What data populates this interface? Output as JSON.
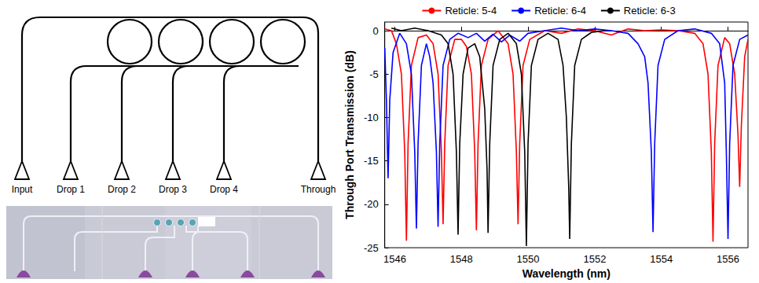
{
  "diagram": {
    "ports": [
      "Input",
      "Drop 1",
      "Drop 2",
      "Drop 3",
      "Drop 4",
      "Through"
    ]
  },
  "chart_data": {
    "type": "line",
    "x_label": "Wavelength (nm)",
    "y_label": "Through Port Transmission (dB)",
    "xlim": [
      1545.7,
      1556.6
    ],
    "xticks": [
      1546,
      1548,
      1550,
      1552,
      1554,
      1556
    ],
    "ylim": [
      -25,
      1
    ],
    "yticks": [
      -25,
      -20,
      -15,
      -10,
      -5,
      0
    ],
    "grid": false,
    "legend": "top",
    "series": [
      {
        "name": "Reticle: 5-4",
        "color": "#ff0000",
        "x": [
          1545.7,
          1545.9,
          1546.05,
          1546.2,
          1546.3,
          1546.35,
          1546.4,
          1546.5,
          1546.7,
          1546.95,
          1547.15,
          1547.3,
          1547.4,
          1547.45,
          1547.5,
          1547.6,
          1547.8,
          1548.0,
          1548.15,
          1548.3,
          1548.4,
          1548.45,
          1548.5,
          1548.6,
          1548.8,
          1549.1,
          1549.4,
          1549.55,
          1549.65,
          1549.7,
          1549.75,
          1549.85,
          1550.05,
          1550.5,
          1551.0,
          1551.5,
          1552.0,
          1552.5,
          1553.0,
          1553.5,
          1554.0,
          1554.5,
          1555.0,
          1555.25,
          1555.4,
          1555.5,
          1555.55,
          1555.6,
          1555.7,
          1555.9,
          1556.05,
          1556.2,
          1556.3,
          1556.35,
          1556.4,
          1556.5,
          1556.6
        ],
        "values": [
          0.2,
          0,
          -1.5,
          -5,
          -14,
          -24.2,
          -13,
          -4,
          -0.8,
          -0.5,
          -1.5,
          -5,
          -14,
          -22.3,
          -13,
          -4,
          -1,
          -1,
          -1.8,
          -5,
          -14,
          -23,
          -13,
          -4,
          -1,
          0,
          -1.5,
          -5,
          -14,
          -22.3,
          -13,
          -4,
          -1,
          0,
          -0.3,
          0.2,
          0,
          -0.5,
          0.2,
          0,
          0.1,
          0,
          -0.3,
          -1.5,
          -5,
          -14,
          -24.3,
          -13,
          -4,
          -0.8,
          -1.5,
          -5,
          -12,
          -18,
          -11,
          -3,
          -1
        ]
      },
      {
        "name": "Reticle: 6-4",
        "color": "#0000ff",
        "x": [
          1545.7,
          1545.75,
          1545.8,
          1545.85,
          1545.95,
          1546.15,
          1546.35,
          1546.5,
          1546.6,
          1546.65,
          1546.7,
          1546.8,
          1546.95,
          1547.05,
          1547.15,
          1547.25,
          1547.3,
          1547.35,
          1547.45,
          1547.65,
          1547.9,
          1548.2,
          1548.45,
          1548.7,
          1548.95,
          1549.2,
          1549.45,
          1549.75,
          1550.0,
          1550.5,
          1551.0,
          1551.5,
          1552.0,
          1552.5,
          1553.0,
          1553.3,
          1553.5,
          1553.6,
          1553.7,
          1553.75,
          1553.8,
          1553.9,
          1554.1,
          1554.5,
          1555.0,
          1555.5,
          1555.75,
          1555.9,
          1555.95,
          1556.0,
          1556.05,
          1556.15,
          1556.35,
          1556.6
        ],
        "values": [
          -2,
          -8,
          -17,
          -8,
          -2.5,
          -0.3,
          -1.5,
          -5,
          -14,
          -22.8,
          -13,
          -4,
          -1.5,
          -3,
          -6,
          -14,
          -22.6,
          -13,
          -4,
          -1,
          -0.3,
          -0.8,
          -0.3,
          -1.2,
          -0.4,
          -1.3,
          -0.5,
          -1.2,
          -0.3,
          0,
          0.3,
          0,
          0.2,
          0,
          -0.3,
          -1.5,
          -3,
          -6,
          -14,
          -23.2,
          -13,
          -4,
          -1,
          0,
          0.2,
          -0.3,
          -1.5,
          -6,
          -14,
          -24,
          -13,
          -4,
          -1,
          -0.5
        ]
      },
      {
        "name": "Reticle: 6-3",
        "color": "#000000",
        "x": [
          1545.9,
          1546.2,
          1546.6,
          1547.0,
          1547.4,
          1547.6,
          1547.75,
          1547.85,
          1547.9,
          1547.95,
          1548.05,
          1548.2,
          1548.4,
          1548.55,
          1548.7,
          1548.77,
          1548.8,
          1548.85,
          1548.95,
          1549.15,
          1549.4,
          1549.65,
          1549.8,
          1549.9,
          1549.95,
          1550.0,
          1550.1,
          1550.3,
          1550.6,
          1550.9,
          1551.05,
          1551.15,
          1551.22,
          1551.25,
          1551.3,
          1551.4,
          1551.6,
          1551.9,
          1552.3
        ],
        "values": [
          0.3,
          0,
          0.3,
          0,
          -0.5,
          -1.5,
          -5,
          -14,
          -23.5,
          -13,
          -5,
          -2,
          -1.5,
          -3,
          -9,
          -16,
          -23.3,
          -13,
          -4,
          -1,
          -0.3,
          -1.5,
          -5,
          -14,
          -24.8,
          -13,
          -4,
          -1,
          -0.3,
          -1,
          -4,
          -10,
          -18,
          -24,
          -13,
          -4,
          -1,
          -0.2,
          0
        ]
      }
    ]
  }
}
